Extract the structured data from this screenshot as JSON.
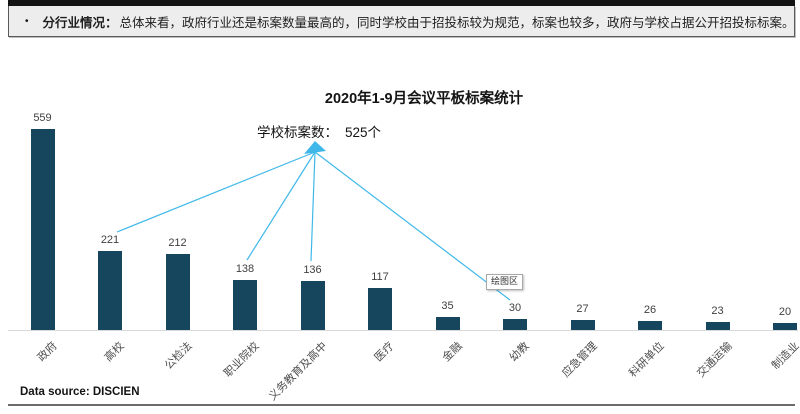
{
  "header": {
    "bullet": "•",
    "label": "分行业情况：",
    "text": "总体来看，政府行业还是标案数量最高的，同时学校由于招投标较为规范，标案也较多，政府与学校占据公开招投标标案。"
  },
  "chart_data": {
    "type": "bar",
    "title": "2020年1-9月会议平板标案统计",
    "categories": [
      "政府",
      "高校",
      "公检法",
      "职业院校",
      "义务教育及高中",
      "医疗",
      "金融",
      "幼教",
      "应急管理",
      "科研单位",
      "交通运输",
      "制造业"
    ],
    "values": [
      559,
      221,
      212,
      138,
      136,
      117,
      35,
      30,
      27,
      26,
      23,
      20
    ],
    "xlabel": "",
    "ylabel": "",
    "ylim": [
      0,
      600
    ],
    "grid": false,
    "legend": "none",
    "bar_color": "#16465e",
    "value_label_color": "#404040",
    "annotation": {
      "label": "学校标案数：",
      "value": "525个",
      "line_color": "#3fb8e9",
      "targets": [
        "高校",
        "职业院校",
        "义务教育及高中",
        "幼教"
      ]
    },
    "tooltip": "绘图区"
  },
  "footer": {
    "source": "Data source:  DISCIEN"
  }
}
